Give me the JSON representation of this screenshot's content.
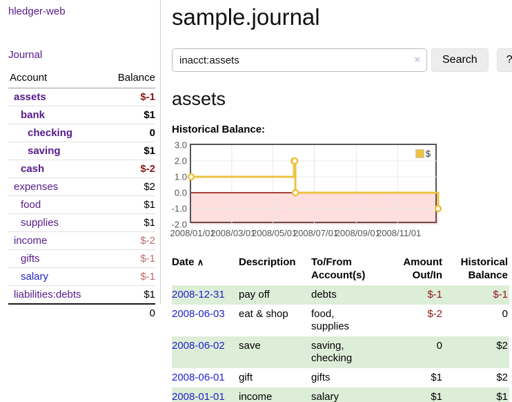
{
  "colors": {
    "link_purple": "#551a8b",
    "link_blue": "#2222cc",
    "negative_strong": "#8c1616",
    "negative_muted": "#bc6a6a",
    "row_stripe_green": "#ddeed8",
    "chart_line": "#edc240",
    "chart_zero_line": "#8b0000",
    "chart_grid_border": "#545454"
  },
  "sidebar": {
    "brand": "hledger-web",
    "journal_link": "Journal",
    "accounts_table": {
      "headers": {
        "account": "Account",
        "balance": "Balance"
      },
      "rows": [
        {
          "name": "assets",
          "balance": "$-1"
        },
        {
          "name": "bank",
          "balance": "$1"
        },
        {
          "name": "checking",
          "balance": "0"
        },
        {
          "name": "saving",
          "balance": "$1"
        },
        {
          "name": "cash",
          "balance": "$-2"
        },
        {
          "name": "expenses",
          "balance": "$2"
        },
        {
          "name": "food",
          "balance": "$1"
        },
        {
          "name": "supplies",
          "balance": "$1"
        },
        {
          "name": "income",
          "balance": "$-2"
        },
        {
          "name": "gifts",
          "balance": "$-1"
        },
        {
          "name": "salary",
          "balance": "$-1"
        },
        {
          "name": "liabilities:debts",
          "balance": "$1"
        }
      ],
      "total": "0"
    }
  },
  "main": {
    "title": "sample.journal",
    "search": {
      "value": "inacct:assets",
      "clear_icon": "×",
      "search_button": "Search",
      "help_button": "?"
    },
    "account_heading": "assets",
    "chart_label": "Historical Balance:",
    "register_table": {
      "headers": {
        "date": "Date",
        "sort_icon": "∧",
        "description": "Description",
        "accounts": "To/From Account(s)",
        "amount": "Amount Out/In",
        "balance": "Historical Balance"
      },
      "rows": [
        {
          "date": "2008-12-31",
          "description": "pay off",
          "accounts": "debts",
          "amount": "$-1",
          "balance": "$-1"
        },
        {
          "date": "2008-06-03",
          "description": "eat & shop",
          "accounts": "food, supplies",
          "amount": "$-2",
          "balance": "0"
        },
        {
          "date": "2008-06-02",
          "description": "save",
          "accounts": "saving, checking",
          "amount": "0",
          "balance": "$2"
        },
        {
          "date": "2008-06-01",
          "description": "gift",
          "accounts": "gifts",
          "amount": "$1",
          "balance": "$2"
        },
        {
          "date": "2008-01-01",
          "description": "income",
          "accounts": "salary",
          "amount": "$1",
          "balance": "$1"
        }
      ]
    }
  },
  "chart_data": {
    "type": "line",
    "step": true,
    "title": "Historical Balance",
    "legend": {
      "label": "$",
      "position": "top-right"
    },
    "ylim": [
      -2,
      3
    ],
    "grid": true,
    "below_zero_fill": "rgba(255,0,0,0.13)",
    "zero_line_color": "#8b0000",
    "series": [
      {
        "name": "$",
        "color": "#edc240",
        "points": [
          {
            "date": "2008/01/01",
            "value": 1
          },
          {
            "date": "2008/06/01",
            "value": 2
          },
          {
            "date": "2008/06/02",
            "value": 2
          },
          {
            "date": "2008/06/03",
            "value": 0
          },
          {
            "date": "2008/12/31",
            "value": -1
          }
        ]
      }
    ],
    "yticks": [
      {
        "value": 3,
        "label": "3.0"
      },
      {
        "value": 2,
        "label": "2.0"
      },
      {
        "value": 1,
        "label": "1.0"
      },
      {
        "value": 0,
        "label": "0.0"
      },
      {
        "value": -1,
        "label": "-1.0"
      },
      {
        "value": -2,
        "label": "-2.0"
      }
    ],
    "xticks": [
      {
        "date": "2008/01/01",
        "label": "2008/01/01"
      },
      {
        "date": "2008/03/01",
        "label": "2008/03/01"
      },
      {
        "date": "2008/05/01",
        "label": "2008/05/01"
      },
      {
        "date": "2008/07/01",
        "label": "2008/07/01"
      },
      {
        "date": "2008/09/01",
        "label": "2008/09/01"
      },
      {
        "date": "2008/11/01",
        "label": "2008/11/01"
      }
    ]
  }
}
